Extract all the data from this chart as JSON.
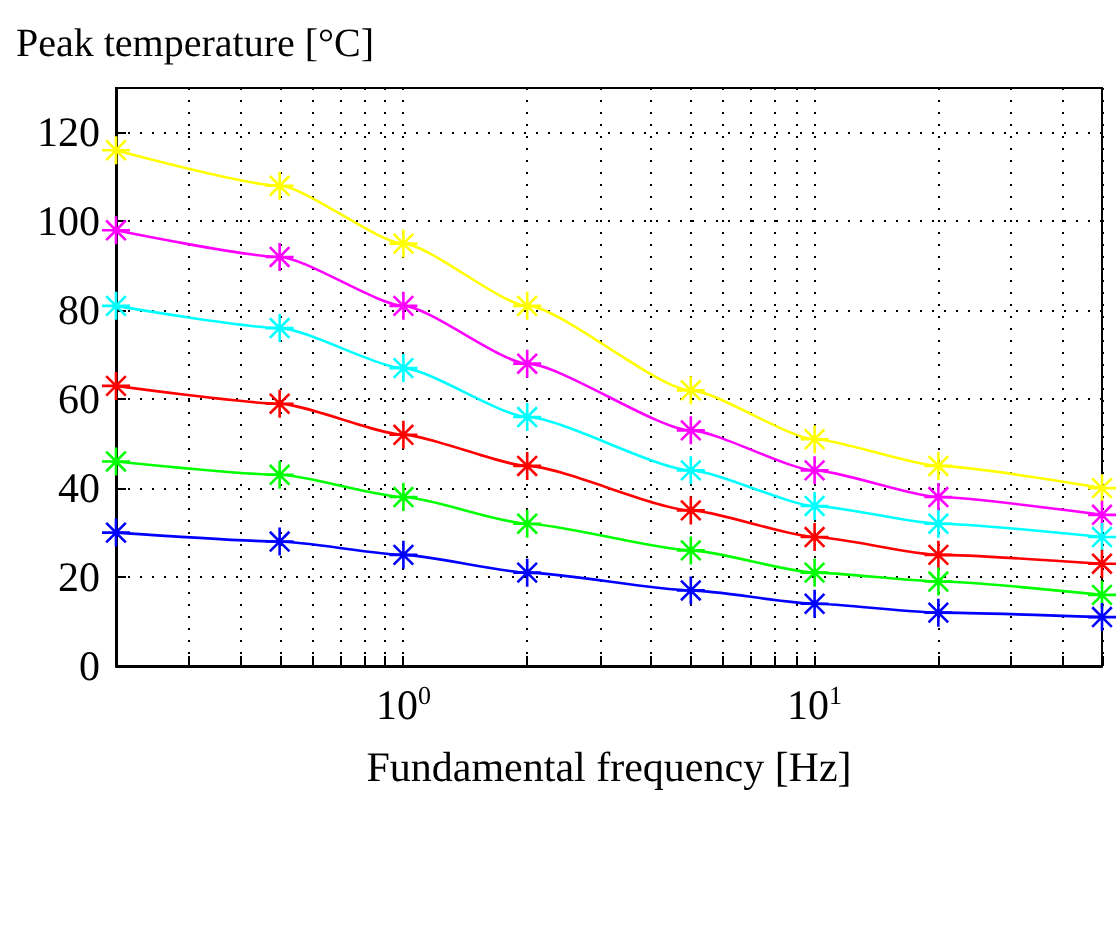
{
  "chart_data": {
    "type": "line",
    "xlabel": "Fundamental frequency [Hz]",
    "ylabel": "Peak temperature [°C]",
    "x": [
      0.2,
      0.5,
      1,
      2,
      5,
      10,
      20,
      50
    ],
    "log": "x",
    "grid": true,
    "marker": "cross",
    "line_style": "solid",
    "xlim": [
      0.2,
      50
    ],
    "xticks": [
      {
        "value": 0.3,
        "label": null
      },
      {
        "value": 0.4,
        "label": null
      },
      {
        "value": 0.5,
        "label": null
      },
      {
        "value": 0.6,
        "label": null
      },
      {
        "value": 0.7,
        "label": null
      },
      {
        "value": 0.8,
        "label": null
      },
      {
        "value": 0.9,
        "label": null
      },
      {
        "value": 1,
        "label": "10$^{0}$"
      },
      {
        "value": 2,
        "label": null
      },
      {
        "value": 3,
        "label": null
      },
      {
        "value": 4,
        "label": null
      },
      {
        "value": 5,
        "label": null
      },
      {
        "value": 6,
        "label": null
      },
      {
        "value": 7,
        "label": null
      },
      {
        "value": 8,
        "label": null
      },
      {
        "value": 9,
        "label": null
      },
      {
        "value": 10,
        "label": "10$^{1}$"
      },
      {
        "value": 20,
        "label": null
      },
      {
        "value": 30,
        "label": null
      },
      {
        "value": 40,
        "label": null
      },
      {
        "value": 50,
        "label": null
      }
    ],
    "ylim": [
      0,
      130
    ],
    "yticks": [
      0,
      20,
      40,
      60,
      80,
      100,
      120
    ],
    "series": [
      {
        "color": "#ffff00",
        "values": [
          116,
          108,
          95,
          81,
          62,
          51,
          45,
          40
        ]
      },
      {
        "color": "#ff00ff",
        "values": [
          98,
          92,
          81,
          68,
          53,
          44,
          38,
          34
        ]
      },
      {
        "color": "#00ffff",
        "values": [
          81,
          76,
          67,
          56,
          44,
          36,
          32,
          29
        ]
      },
      {
        "color": "#ff0000",
        "values": [
          63,
          59,
          52,
          45,
          35,
          29,
          25,
          23
        ]
      },
      {
        "color": "#00ff00",
        "values": [
          46,
          43,
          38,
          32,
          26,
          21,
          19,
          16
        ]
      },
      {
        "color": "#0000ff",
        "values": [
          30,
          28,
          25,
          21,
          17,
          14,
          12,
          11
        ]
      }
    ]
  }
}
